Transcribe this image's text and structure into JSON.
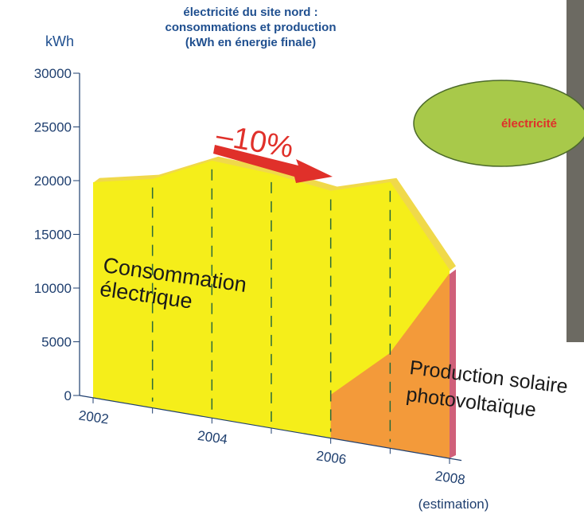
{
  "chart_data": {
    "type": "area",
    "title": "électricité du site nord :\nconsommations et production\n(kWh en énergie finale)",
    "y_label": "kWh",
    "categories": [
      "2002",
      null,
      "2004",
      null,
      "2006",
      null,
      "2008"
    ],
    "x_note": "(estimation)",
    "series": [
      {
        "name": "Consommation électrique",
        "color": "#f5ee1a",
        "values": [
          19800,
          20100,
          21800,
          20600,
          19000,
          19800,
          11600
        ]
      },
      {
        "name": "Production solaire photovoltaïque",
        "color": "#f39a3a",
        "values": [
          null,
          null,
          null,
          null,
          0,
          3900,
          11300
        ]
      }
    ],
    "ylim": [
      0,
      30000
    ],
    "yticks": [
      0,
      5000,
      10000,
      15000,
      20000,
      25000,
      30000
    ],
    "annotation": "–10%",
    "badge": "électricité"
  }
}
